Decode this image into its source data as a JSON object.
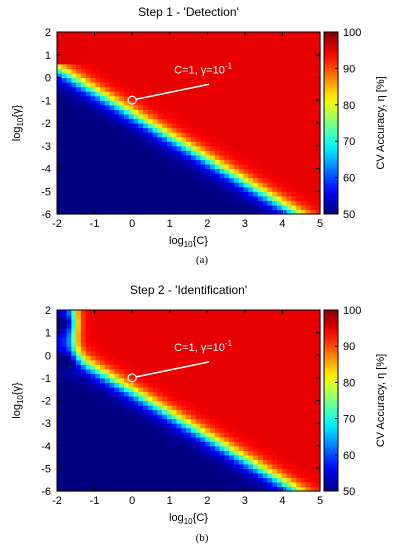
{
  "chart_data": [
    {
      "type": "heatmap",
      "title": "Step 1 - 'Detection'",
      "xlabel_base": "log",
      "xlabel_sub": "10",
      "xlabel_arg": "{C}",
      "ylabel_base": "log",
      "ylabel_sub": "10",
      "ylabel_arg": "{γ}",
      "colorbar_label": "CV Accuracy, η [%]",
      "x_ticks": [
        "-2",
        "-1",
        "0",
        "1",
        "2",
        "3",
        "4",
        "5"
      ],
      "y_ticks": [
        "2",
        "1",
        "0",
        "-1",
        "-2",
        "-3",
        "-4",
        "-5",
        "-6"
      ],
      "colorbar_ticks": [
        "100",
        "90",
        "80",
        "70",
        "60",
        "50"
      ],
      "xlim": [
        -2,
        5
      ],
      "ylim": [
        -6,
        2
      ],
      "clim": [
        50,
        100
      ],
      "colormap": "jet",
      "description": "High accuracy (~95%) above the diagonal log10(γ) ≈ -1.6 - log10(C); accuracy drops through 80/70/60% to 50% below it.",
      "highlight": {
        "x": 0,
        "y": -1,
        "annotation_main": "C=1, γ=10",
        "annotation_sup": "-1"
      },
      "sub_caption": "(a)"
    },
    {
      "type": "heatmap",
      "title": "Step 2 - 'Identification'",
      "xlabel_base": "log",
      "xlabel_sub": "10",
      "xlabel_arg": "{C}",
      "ylabel_base": "log",
      "ylabel_sub": "10",
      "ylabel_arg": "{γ}",
      "colorbar_label": "CV Accuracy, η [%]",
      "x_ticks": [
        "-2",
        "-1",
        "0",
        "1",
        "2",
        "3",
        "4",
        "5"
      ],
      "y_ticks": [
        "2",
        "1",
        "0",
        "-1",
        "-2",
        "-3",
        "-4",
        "-5",
        "-6"
      ],
      "colorbar_ticks": [
        "100",
        "90",
        "80",
        "70",
        "60",
        "50"
      ],
      "xlim": [
        -2,
        5
      ],
      "ylim": [
        -6,
        2
      ],
      "clim": [
        50,
        100
      ],
      "colormap": "jet",
      "description": "High accuracy (~95%) above the diagonal log10(γ) ≈ -1.6 - log10(C), plus a low-accuracy pocket at log10(C) < -1.5 and log10(γ) > -0.7.",
      "highlight": {
        "x": 0,
        "y": -1,
        "annotation_main": "C=1, γ=10",
        "annotation_sup": "-1"
      },
      "sub_caption": "(b)"
    }
  ]
}
